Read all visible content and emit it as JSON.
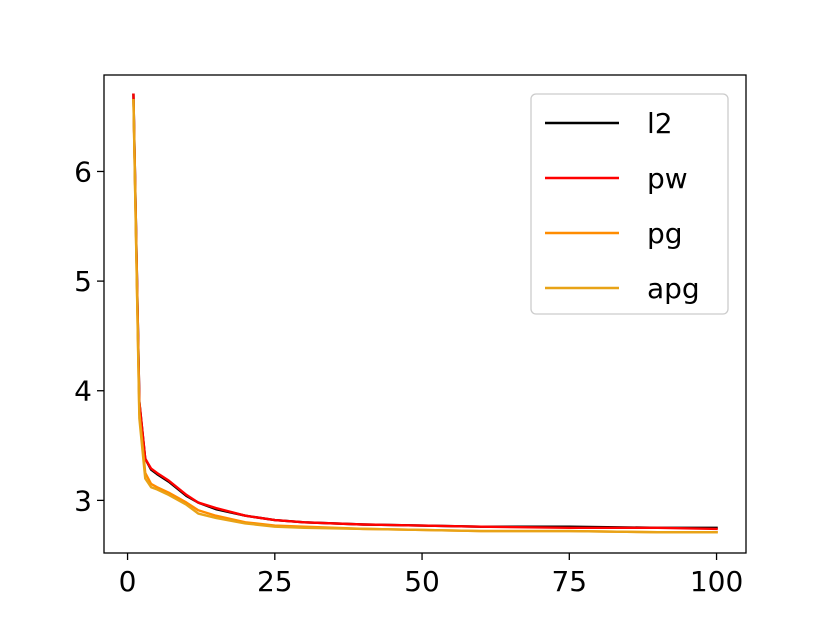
{
  "chart_data": {
    "type": "line",
    "title": "",
    "xlabel": "",
    "ylabel": "",
    "xlim": [
      -4,
      105
    ],
    "ylim": [
      2.52,
      6.88
    ],
    "xticks": [
      0,
      25,
      50,
      75,
      100
    ],
    "yticks": [
      3,
      4,
      5,
      6
    ],
    "grid": false,
    "legend_position": "top-right",
    "x": [
      1,
      2,
      3,
      4,
      5,
      7,
      10,
      12,
      15,
      20,
      25,
      30,
      40,
      50,
      60,
      75,
      90,
      100
    ],
    "series": [
      {
        "name": "l2",
        "color": "#000000",
        "values": [
          6.7,
          3.9,
          3.38,
          3.28,
          3.24,
          3.17,
          3.04,
          2.98,
          2.92,
          2.86,
          2.82,
          2.8,
          2.78,
          2.77,
          2.76,
          2.76,
          2.75,
          2.75
        ]
      },
      {
        "name": "pw",
        "color": "#ff0000",
        "values": [
          6.7,
          3.9,
          3.38,
          3.29,
          3.25,
          3.18,
          3.05,
          2.98,
          2.93,
          2.86,
          2.82,
          2.8,
          2.78,
          2.77,
          2.76,
          2.75,
          2.75,
          2.74
        ]
      },
      {
        "name": "pg",
        "color": "#ff8c00",
        "values": [
          6.65,
          3.8,
          3.25,
          3.15,
          3.12,
          3.07,
          2.98,
          2.91,
          2.86,
          2.8,
          2.77,
          2.76,
          2.74,
          2.73,
          2.72,
          2.72,
          2.71,
          2.71
        ]
      },
      {
        "name": "apg",
        "color": "#e8a317",
        "values": [
          6.65,
          3.75,
          3.2,
          3.12,
          3.1,
          3.05,
          2.96,
          2.88,
          2.84,
          2.79,
          2.76,
          2.75,
          2.74,
          2.73,
          2.72,
          2.72,
          2.71,
          2.71
        ]
      }
    ]
  }
}
